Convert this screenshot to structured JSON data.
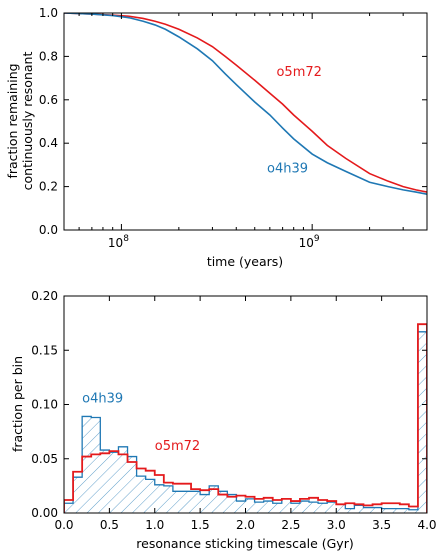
{
  "chart_data": [
    {
      "type": "line",
      "xlabel": "time (years)",
      "ylabel_lines": [
        "fraction remaining",
        "continuously resonant"
      ],
      "xscale": "log",
      "xlim": [
        50000000,
        4000000000
      ],
      "ylim": [
        0.0,
        1.0
      ],
      "x_ticks": [
        {
          "value": 100000000,
          "base": "10",
          "exp": "8"
        },
        {
          "value": 1000000000,
          "base": "10",
          "exp": "9"
        }
      ],
      "y_ticks": [
        "0.0",
        "0.2",
        "0.4",
        "0.6",
        "0.8",
        "1.0"
      ],
      "y_tick_values": [
        0.0,
        0.2,
        0.4,
        0.6,
        0.8,
        1.0
      ],
      "grid": false,
      "annotations": [
        {
          "text": "o5m72",
          "color": "#e41a1c",
          "x": 650000000,
          "y": 0.71
        },
        {
          "text": "o4h39",
          "color": "#1f78b4",
          "x": 580000000,
          "y": 0.265
        }
      ],
      "series": [
        {
          "color": "#e41a1c",
          "x": [
            50000000,
            70000000,
            90000000,
            110000000,
            130000000,
            150000000,
            170000000,
            200000000,
            250000000,
            300000000,
            350000000,
            400000000,
            500000000,
            600000000,
            700000000,
            800000000,
            1000000000,
            1200000000,
            1500000000,
            2000000000,
            2500000000,
            3000000000,
            3500000000,
            4000000000
          ],
          "y": [
            1.0,
            0.995,
            0.99,
            0.985,
            0.975,
            0.962,
            0.948,
            0.925,
            0.885,
            0.845,
            0.8,
            0.76,
            0.69,
            0.63,
            0.58,
            0.53,
            0.455,
            0.39,
            0.33,
            0.26,
            0.225,
            0.2,
            0.185,
            0.175
          ]
        },
        {
          "color": "#1f78b4",
          "x": [
            50000000,
            70000000,
            90000000,
            110000000,
            130000000,
            150000000,
            170000000,
            200000000,
            250000000,
            300000000,
            350000000,
            400000000,
            500000000,
            600000000,
            700000000,
            800000000,
            1000000000,
            1200000000,
            1500000000,
            2000000000,
            2500000000,
            3000000000,
            3500000000,
            4000000000
          ],
          "y": [
            1.0,
            0.995,
            0.988,
            0.978,
            0.962,
            0.945,
            0.925,
            0.89,
            0.835,
            0.78,
            0.72,
            0.67,
            0.59,
            0.53,
            0.47,
            0.42,
            0.35,
            0.31,
            0.27,
            0.22,
            0.2,
            0.185,
            0.175,
            0.165
          ]
        }
      ]
    },
    {
      "type": "bar",
      "subtype": "step-histogram",
      "xlabel": "resonance sticking timescale (Gyr)",
      "ylabel": "fraction per bin",
      "xlim": [
        0.0,
        4.0
      ],
      "ylim": [
        0.0,
        0.2
      ],
      "bin_width": 0.1,
      "x_ticks": [
        "0.0",
        "0.5",
        "1.0",
        "1.5",
        "2.0",
        "2.5",
        "3.0",
        "3.5",
        "4.0"
      ],
      "x_tick_values": [
        0.0,
        0.5,
        1.0,
        1.5,
        2.0,
        2.5,
        3.0,
        3.5,
        4.0
      ],
      "y_ticks": [
        "0.00",
        "0.05",
        "0.10",
        "0.15",
        "0.20"
      ],
      "y_tick_values": [
        0.0,
        0.05,
        0.1,
        0.15,
        0.2
      ],
      "grid": false,
      "annotations": [
        {
          "text": "o4h39",
          "color": "#1f78b4",
          "x": 0.2,
          "y": 0.102
        },
        {
          "text": "o5m72",
          "color": "#e41a1c",
          "x": 1.0,
          "y": 0.058
        }
      ],
      "series": [
        {
          "color": "#1f78b4",
          "hatched": true,
          "bin_starts": [
            0.0,
            0.1,
            0.2,
            0.3,
            0.4,
            0.5,
            0.6,
            0.7,
            0.8,
            0.9,
            1.0,
            1.1,
            1.2,
            1.3,
            1.4,
            1.5,
            1.6,
            1.7,
            1.8,
            1.9,
            2.0,
            2.1,
            2.2,
            2.3,
            2.4,
            2.5,
            2.6,
            2.7,
            2.8,
            2.9,
            3.0,
            3.1,
            3.2,
            3.3,
            3.4,
            3.5,
            3.6,
            3.7,
            3.8,
            3.9
          ],
          "values": [
            0.009,
            0.033,
            0.089,
            0.088,
            0.058,
            0.056,
            0.061,
            0.052,
            0.034,
            0.031,
            0.026,
            0.025,
            0.02,
            0.02,
            0.02,
            0.017,
            0.025,
            0.02,
            0.017,
            0.011,
            0.013,
            0.01,
            0.011,
            0.009,
            0.013,
            0.009,
            0.011,
            0.01,
            0.009,
            0.01,
            0.008,
            0.004,
            0.007,
            0.005,
            0.005,
            0.004,
            0.004,
            0.004,
            0.003,
            0.167
          ]
        },
        {
          "color": "#e41a1c",
          "hatched": false,
          "bin_starts": [
            0.0,
            0.1,
            0.2,
            0.3,
            0.4,
            0.5,
            0.6,
            0.7,
            0.8,
            0.9,
            1.0,
            1.1,
            1.2,
            1.3,
            1.4,
            1.5,
            1.6,
            1.7,
            1.8,
            1.9,
            2.0,
            2.1,
            2.2,
            2.3,
            2.4,
            2.5,
            2.6,
            2.7,
            2.8,
            2.9,
            3.0,
            3.1,
            3.2,
            3.3,
            3.4,
            3.5,
            3.6,
            3.7,
            3.8,
            3.9
          ],
          "values": [
            0.012,
            0.038,
            0.052,
            0.054,
            0.055,
            0.057,
            0.054,
            0.047,
            0.041,
            0.039,
            0.035,
            0.028,
            0.027,
            0.027,
            0.022,
            0.021,
            0.022,
            0.017,
            0.015,
            0.016,
            0.015,
            0.013,
            0.014,
            0.012,
            0.013,
            0.011,
            0.013,
            0.014,
            0.012,
            0.011,
            0.008,
            0.009,
            0.008,
            0.007,
            0.008,
            0.009,
            0.009,
            0.008,
            0.006,
            0.174
          ]
        }
      ]
    }
  ]
}
